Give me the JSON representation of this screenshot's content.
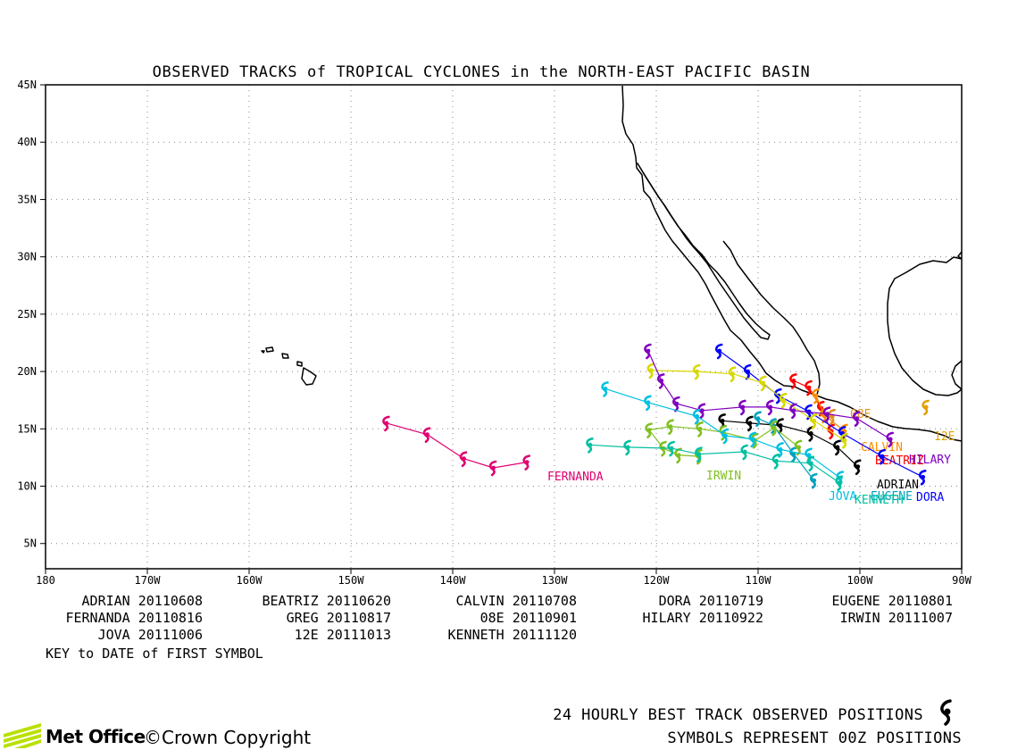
{
  "title": "OBSERVED TRACKS of TROPICAL CYCLONES in the NORTH-EAST PACIFIC BASIN",
  "axes": {
    "lon_labels": [
      "180",
      "170W",
      "160W",
      "150W",
      "140W",
      "130W",
      "120W",
      "110W",
      "100W",
      "90W"
    ],
    "lat_labels": [
      "45N",
      "40N",
      "35N",
      "30N",
      "25N",
      "20N",
      "15N",
      "10N",
      "5N"
    ]
  },
  "legend": [
    {
      "name": "ADRIAN",
      "date": "20110608"
    },
    {
      "name": "BEATRIZ",
      "date": "20110620"
    },
    {
      "name": "CALVIN",
      "date": "20110708"
    },
    {
      "name": "DORA",
      "date": "20110719"
    },
    {
      "name": "EUGENE",
      "date": "20110801"
    },
    {
      "name": "FERNANDA",
      "date": "20110816"
    },
    {
      "name": "GREG",
      "date": "20110817"
    },
    {
      "name": "08E",
      "date": "20110901"
    },
    {
      "name": "HILARY",
      "date": "20110922"
    },
    {
      "name": "IRWIN",
      "date": "20111007"
    },
    {
      "name": "JOVA",
      "date": "20111006"
    },
    {
      "name": "12E",
      "date": "20111013"
    },
    {
      "name": "KENNETH",
      "date": "20111120"
    }
  ],
  "key_text": "KEY to DATE of FIRST SYMBOL",
  "footer": {
    "line1": "24 HOURLY BEST TRACK OBSERVED POSITIONS",
    "line2": "SYMBOLS REPRESENT 00Z POSITIONS",
    "brand": "Met Office",
    "copyright": "©Crown Copyright"
  },
  "storms": [
    {
      "name": "ADRIAN",
      "label": "ADRIAN",
      "color": "#000000",
      "symbols": [
        [
          -100.2,
          11.7
        ],
        [
          -102.2,
          13.4
        ],
        [
          -104.8,
          14.6
        ],
        [
          -107.8,
          15.3
        ],
        [
          -110.8,
          15.5
        ],
        [
          -113.5,
          15.7
        ]
      ]
    },
    {
      "name": "BEATRIZ",
      "label": "BEATRIZ",
      "color": "#ff0000",
      "symbols": [
        [
          -102.8,
          14.8
        ],
        [
          -103.8,
          16.8
        ],
        [
          -105.0,
          18.6
        ],
        [
          -106.5,
          19.2
        ]
      ]
    },
    {
      "name": "CALVIN",
      "label": "CALVIN",
      "color": "#ff8c00",
      "symbols": [
        [
          -101.5,
          14.8
        ],
        [
          -103.5,
          16.2
        ],
        [
          -104.3,
          17.9
        ]
      ]
    },
    {
      "name": "DORA",
      "label": "DORA",
      "color": "#0000ff",
      "symbols": [
        [
          -93.8,
          10.8
        ],
        [
          -97.8,
          12.6
        ],
        [
          -101.7,
          14.6
        ],
        [
          -105.0,
          16.5
        ],
        [
          -108.0,
          17.9
        ],
        [
          -111.0,
          20.0
        ],
        [
          -113.8,
          21.8
        ]
      ]
    },
    {
      "name": "EUGENE",
      "label": "EUGENE",
      "color": "#00a0c0",
      "symbols": [
        [
          -104.5,
          10.5
        ],
        [
          -106.5,
          12.8
        ],
        [
          -108.5,
          15.3
        ],
        [
          -110.0,
          15.9
        ]
      ]
    },
    {
      "name": "FERNANDA",
      "label": "FERNANDA",
      "color": "#e00070",
      "symbols": [
        [
          -146.5,
          15.5
        ],
        [
          -142.5,
          14.5
        ],
        [
          -138.9,
          12.4
        ],
        [
          -136.0,
          11.6
        ],
        [
          -132.7,
          12.1
        ]
      ]
    },
    {
      "name": "GREG",
      "label": "",
      "color": "#d8d800",
      "symbols": [
        [
          -101.5,
          14.0
        ],
        [
          -104.5,
          15.7
        ],
        [
          -107.5,
          17.5
        ],
        [
          -109.5,
          19.0
        ],
        [
          -112.5,
          19.8
        ],
        [
          -116.0,
          20.0
        ],
        [
          -120.5,
          20.1
        ]
      ]
    },
    {
      "name": "08E",
      "label": "08E",
      "color": "#e09020",
      "symbols": [
        [
          -102.7,
          16.1
        ]
      ]
    },
    {
      "name": "HILARY",
      "label": "HILARY",
      "color": "#8000c0",
      "symbols": [
        [
          -97.0,
          14.1
        ],
        [
          -100.3,
          15.9
        ],
        [
          -103.2,
          16.3
        ],
        [
          -106.5,
          16.6
        ],
        [
          -108.8,
          16.9
        ],
        [
          -111.5,
          16.9
        ],
        [
          -115.5,
          16.6
        ],
        [
          -118.0,
          17.2
        ],
        [
          -119.5,
          19.2
        ],
        [
          -120.8,
          21.8
        ]
      ]
    },
    {
      "name": "IRWIN",
      "label": "IRWIN",
      "color": "#80c020",
      "symbols": [
        [
          -106.0,
          13.4
        ],
        [
          -108.4,
          15.1
        ],
        [
          -110.3,
          14.0
        ],
        [
          -113.4,
          14.7
        ],
        [
          -115.7,
          15.0
        ],
        [
          -118.6,
          15.2
        ],
        [
          -120.7,
          14.9
        ],
        [
          -119.3,
          13.3
        ],
        [
          -117.8,
          12.7
        ],
        [
          -115.8,
          12.6
        ]
      ]
    },
    {
      "name": "JOVA",
      "label": "JOVA",
      "color": "#00c0e0",
      "symbols": [
        [
          -101.9,
          10.7
        ],
        [
          -105.0,
          12.7
        ],
        [
          -107.8,
          13.2
        ],
        [
          -110.5,
          14.1
        ],
        [
          -113.2,
          14.4
        ],
        [
          -116.0,
          16.1
        ],
        [
          -120.8,
          17.3
        ],
        [
          -125.0,
          18.5
        ]
      ]
    },
    {
      "name": "12E",
      "label": "12E",
      "color": "#e0a000",
      "symbols": [
        [
          -93.5,
          16.9
        ]
      ]
    },
    {
      "name": "KENNETH",
      "label": "KENNETH",
      "color": "#00c0a0",
      "symbols": [
        [
          -102.0,
          10.3
        ],
        [
          -104.8,
          12.0
        ],
        [
          -108.2,
          12.2
        ],
        [
          -111.3,
          13.0
        ],
        [
          -115.8,
          12.8
        ],
        [
          -118.5,
          13.3
        ],
        [
          -122.8,
          13.4
        ],
        [
          -126.5,
          13.6
        ]
      ]
    }
  ]
}
